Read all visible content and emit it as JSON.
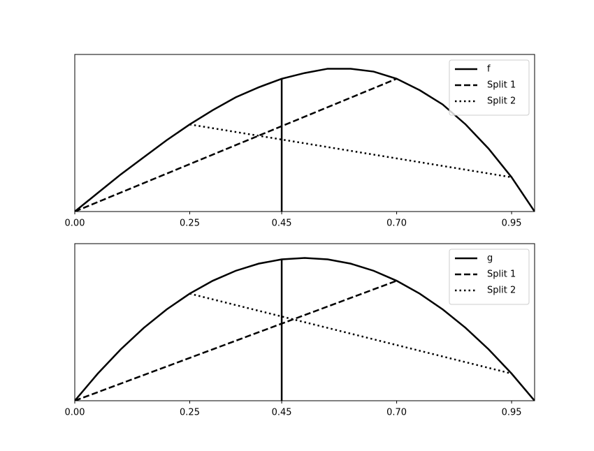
{
  "chart_data": [
    {
      "type": "line",
      "xlim": [
        0,
        1
      ],
      "ylim": [
        0,
        1.1
      ],
      "xticks": [
        {
          "value": 0,
          "label": "0.00"
        },
        {
          "value": 0.25,
          "label": "0.25"
        },
        {
          "value": 0.45,
          "label": "0.45"
        },
        {
          "value": 0.7,
          "label": "0.70"
        },
        {
          "value": 0.95,
          "label": "0.95"
        }
      ],
      "legend": "upper right",
      "series": [
        {
          "name": "f",
          "color": "#000000",
          "linestyle": "solid",
          "x": [
            0,
            0.05,
            0.1,
            0.15,
            0.2,
            0.25,
            0.3,
            0.35,
            0.4,
            0.45,
            0.5,
            0.55,
            0.6,
            0.65,
            0.7,
            0.75,
            0.8,
            0.85,
            0.9,
            0.95,
            1
          ],
          "values": [
            0,
            0.13,
            0.26,
            0.38,
            0.5,
            0.61,
            0.71,
            0.8,
            0.87,
            0.93,
            0.97,
            1.0,
            1.0,
            0.98,
            0.93,
            0.85,
            0.75,
            0.61,
            0.44,
            0.24,
            0
          ]
        },
        {
          "name": "Split 1",
          "color": "#000000",
          "linestyle": "dashed",
          "x": [
            0,
            0.7
          ],
          "values": [
            0,
            0.93
          ]
        },
        {
          "name": "Split 2",
          "color": "#000000",
          "linestyle": "dotted",
          "x": [
            0.25,
            0.95
          ],
          "values": [
            0.61,
            0.24
          ]
        },
        {
          "color": "#000000",
          "linestyle": "solid",
          "x": [
            0.45,
            0.45
          ],
          "values": [
            0,
            0.93
          ]
        }
      ]
    },
    {
      "type": "line",
      "xlim": [
        0,
        1
      ],
      "ylim": [
        0,
        1.1
      ],
      "xticks": [
        {
          "value": 0,
          "label": "0.00"
        },
        {
          "value": 0.25,
          "label": "0.25"
        },
        {
          "value": 0.45,
          "label": "0.45"
        },
        {
          "value": 0.7,
          "label": "0.70"
        },
        {
          "value": 0.95,
          "label": "0.95"
        }
      ],
      "legend": "upper right",
      "series": [
        {
          "name": "g",
          "color": "#000000",
          "linestyle": "solid",
          "x": [
            0,
            0.05,
            0.1,
            0.15,
            0.2,
            0.25,
            0.3,
            0.35,
            0.4,
            0.45,
            0.5,
            0.55,
            0.6,
            0.65,
            0.7,
            0.75,
            0.8,
            0.85,
            0.9,
            0.95,
            1
          ],
          "values": [
            0,
            0.19,
            0.36,
            0.51,
            0.64,
            0.75,
            0.84,
            0.91,
            0.96,
            0.99,
            1.0,
            0.99,
            0.96,
            0.91,
            0.84,
            0.75,
            0.64,
            0.51,
            0.36,
            0.19,
            0
          ]
        },
        {
          "name": "Split 1",
          "color": "#000000",
          "linestyle": "dashed",
          "x": [
            0,
            0.7
          ],
          "values": [
            0,
            0.84
          ]
        },
        {
          "name": "Split 2",
          "color": "#000000",
          "linestyle": "dotted",
          "x": [
            0.25,
            0.95
          ],
          "values": [
            0.75,
            0.19
          ]
        },
        {
          "color": "#000000",
          "linestyle": "solid",
          "x": [
            0.45,
            0.45
          ],
          "values": [
            0,
            0.99
          ]
        }
      ]
    }
  ]
}
